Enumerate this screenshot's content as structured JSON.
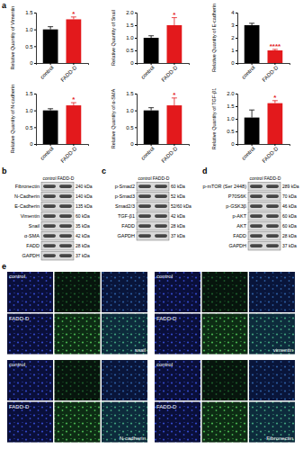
{
  "chart_data": [
    {
      "type": "bar",
      "y_label": "Relative Quantity of Vimentin",
      "categories": [
        "control",
        "FADD-D"
      ],
      "values": [
        1.0,
        1.3
      ],
      "errors": [
        0.08,
        0.07
      ],
      "colors": [
        "#000000",
        "#e3191c"
      ],
      "ylim": [
        0,
        1.5
      ],
      "yticks": [
        0,
        0.5,
        {
          "value": 1,
          "label": "1.0"
        },
        1.5
      ],
      "annotations": [
        {
          "category": "FADD-D",
          "text": "*"
        }
      ]
    },
    {
      "type": "bar",
      "y_label": "Relative Quantity of Snail",
      "categories": [
        "control",
        "FADD-D"
      ],
      "values": [
        1.0,
        1.5
      ],
      "errors": [
        0.08,
        0.3
      ],
      "colors": [
        "#000000",
        "#e3191c"
      ],
      "ylim": [
        0,
        2
      ],
      "yticks": [
        0,
        0.5,
        {
          "value": 1,
          "label": "1.0"
        },
        1.5,
        {
          "value": 2,
          "label": "2.0"
        }
      ],
      "annotations": [
        {
          "category": "FADD-D",
          "text": "*"
        }
      ]
    },
    {
      "type": "bar",
      "y_label": "Relative Quantity of E-cadherin",
      "categories": [
        "control",
        "FADD-D"
      ],
      "values": [
        3.0,
        1.0
      ],
      "errors": [
        0.15,
        0.08
      ],
      "colors": [
        "#000000",
        "#e3191c"
      ],
      "ylim": [
        0,
        4
      ],
      "yticks": [
        0,
        1,
        2,
        3,
        4
      ],
      "annotations": [
        {
          "category": "FADD-D",
          "text": "****"
        }
      ]
    },
    {
      "type": "bar",
      "y_label": "Relative Quantity of N-cadherin",
      "categories": [
        "control",
        "FADD-D"
      ],
      "values": [
        1.0,
        1.15
      ],
      "errors": [
        0.05,
        0.08
      ],
      "colors": [
        "#000000",
        "#e3191c"
      ],
      "ylim": [
        0,
        1.5
      ],
      "yticks": [
        0,
        0.5,
        {
          "value": 1,
          "label": "1.0"
        },
        1.5
      ],
      "annotations": [
        {
          "category": "FADD-D",
          "text": "*"
        }
      ]
    },
    {
      "type": "bar",
      "y_label": "Relative Quantity of α-SMA",
      "categories": [
        "control",
        "FADD-D"
      ],
      "values": [
        1.0,
        1.15
      ],
      "errors": [
        0.08,
        0.22
      ],
      "colors": [
        "#000000",
        "#e3191c"
      ],
      "ylim": [
        0,
        1.5
      ],
      "yticks": [
        0,
        0.5,
        {
          "value": 1,
          "label": "1.0"
        },
        1.5
      ],
      "annotations": [
        {
          "category": "FADD-D",
          "text": "*"
        }
      ]
    },
    {
      "type": "bar",
      "y_label": "Relative Quantity of TGF-β1",
      "categories": [
        "control",
        "FADD-D"
      ],
      "values": [
        1.05,
        1.62
      ],
      "errors": [
        0.3,
        0.1
      ],
      "colors": [
        "#000000",
        "#e3191c"
      ],
      "ylim": [
        0,
        2
      ],
      "yticks": [
        0,
        0.5,
        {
          "value": 1,
          "label": "1.0"
        },
        1.5,
        {
          "value": 2,
          "label": "2.0"
        }
      ],
      "annotations": [
        {
          "category": "FADD-D",
          "text": "*"
        }
      ]
    }
  ],
  "panel_labels": [
    "a",
    "b",
    "c",
    "d",
    "e"
  ],
  "blots": [
    {
      "lanes": [
        "control",
        "FADD-D"
      ],
      "rows": [
        {
          "protein": "Fibronectin",
          "size": "240 kDa"
        },
        {
          "protein": "N-Cadherin",
          "size": "140 kDa"
        },
        {
          "protein": "E-Cadherin",
          "size": "135 kDa"
        },
        {
          "protein": "Vimentin",
          "size": "60 kDa"
        },
        {
          "protein": "Snail",
          "size": "35 kDa"
        },
        {
          "protein": "α-SMA",
          "size": "42 kDa"
        },
        {
          "protein": "FADD",
          "size": "28 kDa"
        },
        {
          "protein": "GAPDH",
          "size": "37 kDa"
        }
      ]
    },
    {
      "lanes": [
        "control",
        "FADD-D"
      ],
      "rows": [
        {
          "protein": "p-Smad2",
          "size": "60 kDa"
        },
        {
          "protein": "p-Smad3",
          "size": "52 kDa"
        },
        {
          "protein": "Smad2/3",
          "size": "52/60 kDa"
        },
        {
          "protein": "TGF-β1",
          "size": "42 kDa"
        },
        {
          "protein": "FADD",
          "size": "28 kDa"
        },
        {
          "protein": "GAPDH",
          "size": "37 kDa"
        }
      ]
    },
    {
      "lanes": [
        "control",
        "FADD-D"
      ],
      "rows": [
        {
          "protein": "p-mTOR (Ser 2448)",
          "size": "289 kDa"
        },
        {
          "protein": "P70S6K",
          "size": "70 kDa"
        },
        {
          "protein": "p-GSK3β",
          "size": "46 kDa"
        },
        {
          "protein": "p-AKT",
          "size": "60 kDa"
        },
        {
          "protein": "AKT",
          "size": "60 kDa"
        },
        {
          "protein": "FADD",
          "size": "28 kDa"
        },
        {
          "protein": "GAPDH",
          "size": "37 kDa"
        }
      ]
    }
  ],
  "immunofluorescence": {
    "groups": [
      {
        "stain": "snail",
        "rows": [
          "control",
          "FADD-D"
        ]
      },
      {
        "stain": "vimentin",
        "rows": [
          "control",
          "FADD-D"
        ]
      },
      {
        "stain": "N-cadherin",
        "rows": [
          "control",
          "FADD-D"
        ]
      },
      {
        "stain": "Fibronectin",
        "rows": [
          "control",
          "FADD-D"
        ]
      }
    ]
  }
}
